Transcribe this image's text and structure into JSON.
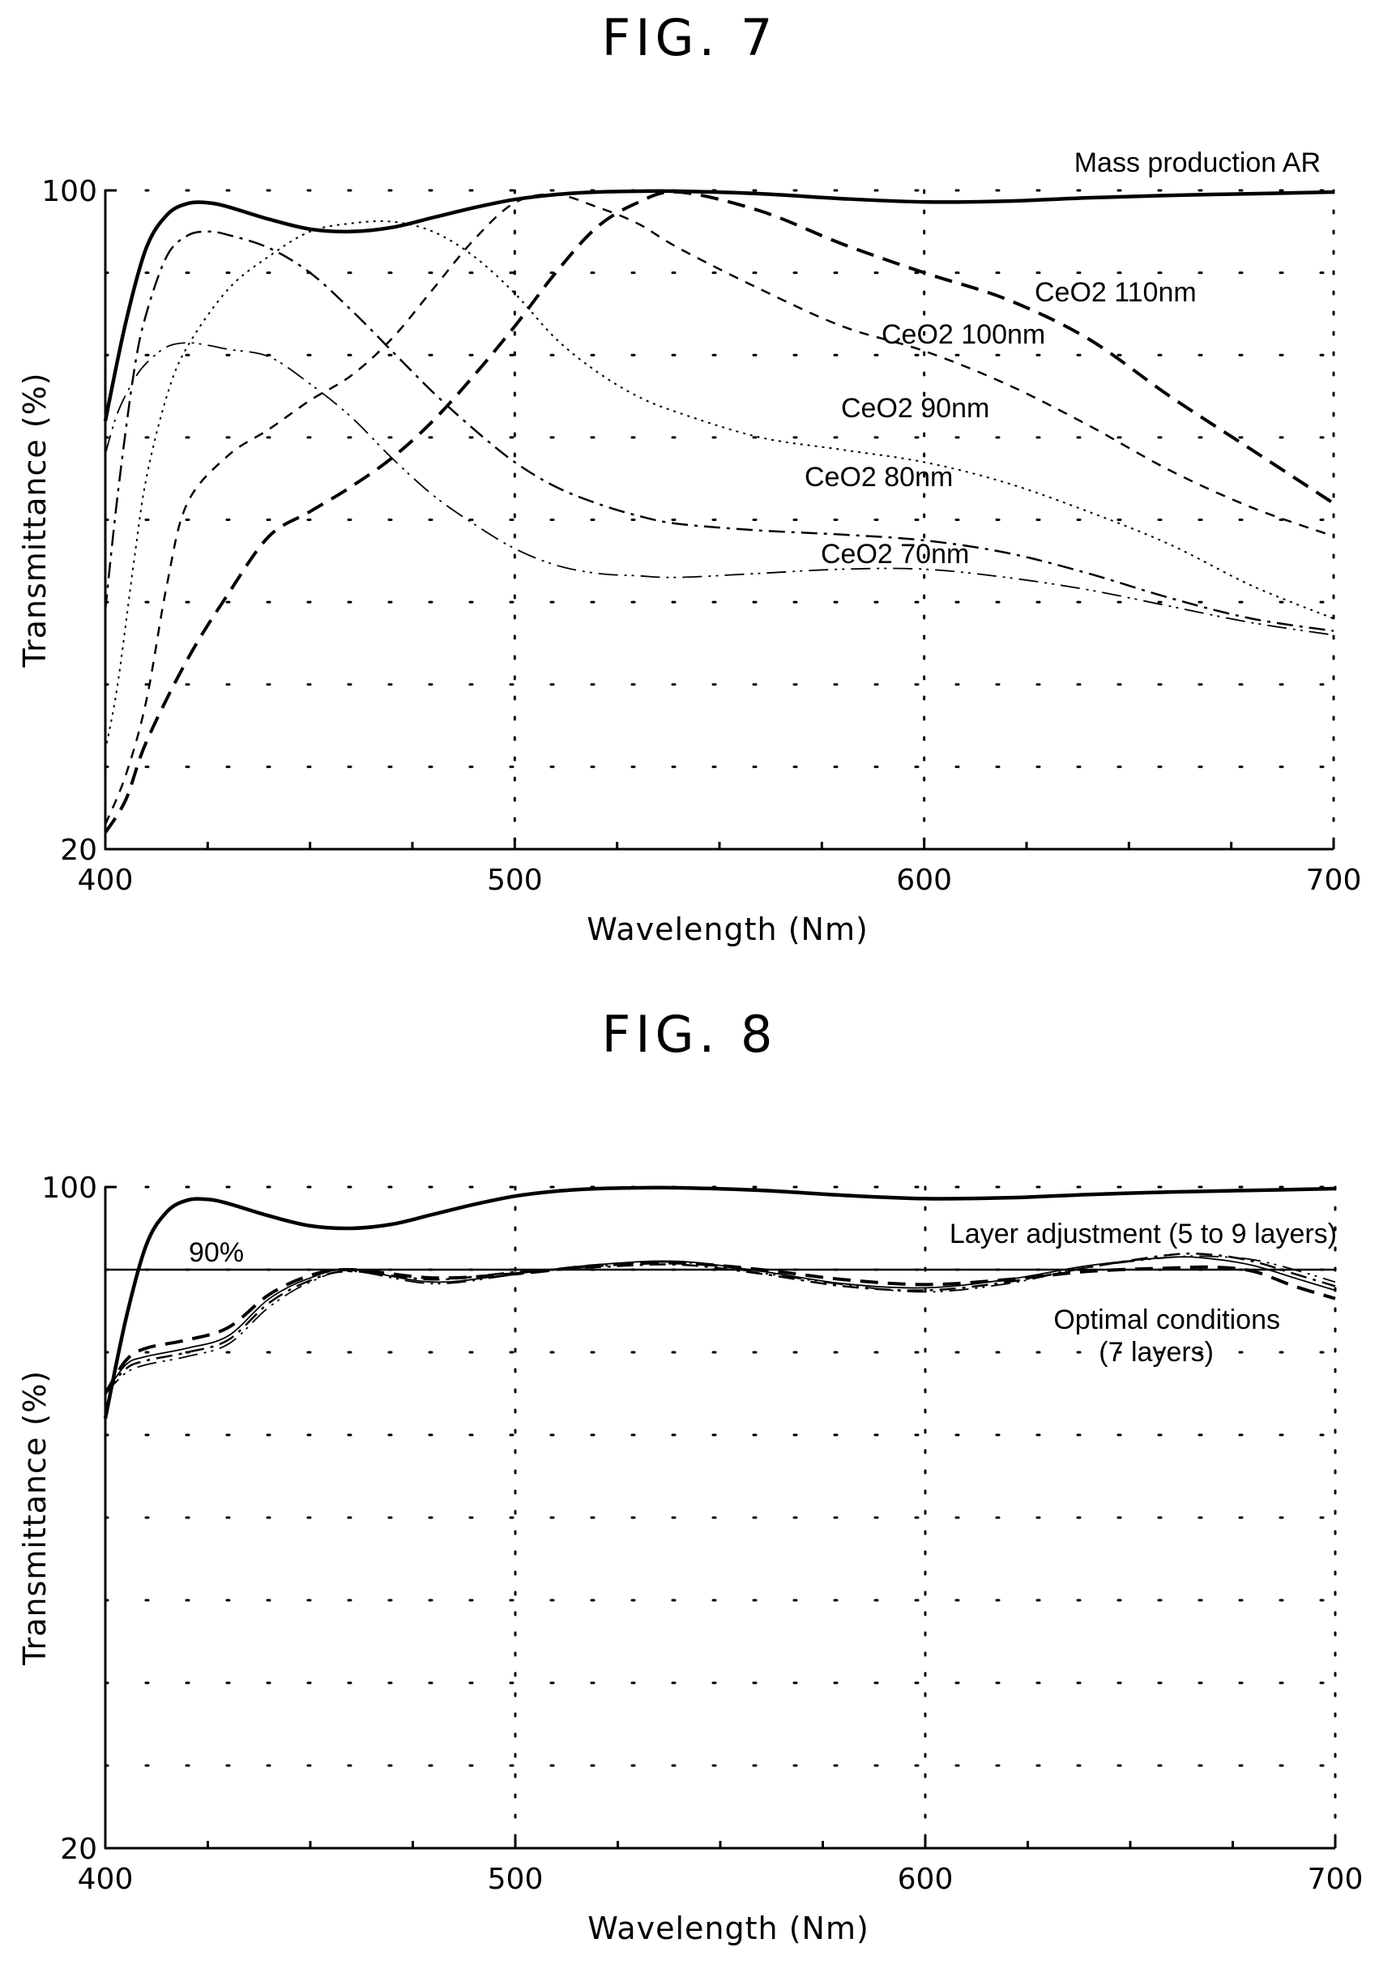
{
  "figures": [
    {
      "title": "FIG. 7"
    },
    {
      "title": "FIG. 8"
    }
  ],
  "chart_data": [
    {
      "type": "line",
      "title": "FIG. 7",
      "xlabel": "Wavelength (Nm)",
      "ylabel": "Transmittance (%)",
      "xlim": [
        400,
        700
      ],
      "ylim": [
        20,
        100
      ],
      "xticks": [
        400,
        500,
        600,
        700
      ],
      "yticks": [
        20,
        100
      ],
      "grid": true,
      "series": [
        {
          "name": "Mass production AR",
          "style": "solid-bold",
          "x": [
            400,
            405,
            410,
            415,
            420,
            425,
            430,
            440,
            450,
            460,
            470,
            480,
            490,
            500,
            510,
            520,
            530,
            540,
            560,
            580,
            600,
            620,
            640,
            660,
            680,
            700
          ],
          "y": [
            72,
            84,
            93,
            97,
            98.4,
            98.5,
            98,
            96.5,
            95.3,
            95,
            95.5,
            96.7,
            97.9,
            98.9,
            99.5,
            99.8,
            99.9,
            99.9,
            99.6,
            99,
            98.6,
            98.7,
            99.1,
            99.4,
            99.6,
            99.8
          ]
        },
        {
          "name": "CeO2 110nm",
          "style": "dash-long-bold",
          "x": [
            400,
            405,
            410,
            420,
            430,
            440,
            450,
            460,
            470,
            480,
            490,
            500,
            510,
            520,
            530,
            540,
            560,
            580,
            600,
            620,
            640,
            660,
            680,
            700
          ],
          "y": [
            22,
            26,
            33,
            43,
            51,
            58,
            61,
            64,
            67.5,
            72,
            77.5,
            83.5,
            90,
            95.5,
            98.5,
            99.8,
            97.5,
            93.5,
            90,
            86.8,
            82,
            75,
            68.5,
            62
          ]
        },
        {
          "name": "CeO2 100nm",
          "style": "dash-medium",
          "x": [
            400,
            405,
            410,
            415,
            420,
            430,
            440,
            450,
            460,
            470,
            480,
            490,
            500,
            510,
            520,
            530,
            540,
            560,
            580,
            600,
            620,
            640,
            660,
            680,
            700
          ],
          "y": [
            23,
            29,
            38,
            52,
            62,
            67.8,
            71,
            74.5,
            77.5,
            82,
            88,
            94,
            98.5,
            99.5,
            98,
            96,
            93,
            88,
            83.5,
            80.5,
            76.5,
            71.5,
            66,
            61.5,
            58
          ]
        },
        {
          "name": "CeO2 90nm",
          "style": "dotted",
          "x": [
            400,
            403,
            407,
            410,
            415,
            420,
            430,
            440,
            450,
            460,
            470,
            480,
            490,
            500,
            510,
            520,
            530,
            540,
            560,
            580,
            600,
            620,
            640,
            660,
            680,
            700
          ],
          "y": [
            32,
            40,
            55,
            65,
            75,
            81,
            88,
            92,
            95,
            96,
            96.2,
            95,
            92,
            87.5,
            82,
            78,
            75,
            73,
            70,
            68.5,
            67,
            64.5,
            61,
            57,
            52,
            48
          ]
        },
        {
          "name": "CeO2 80nm",
          "style": "dash-dot",
          "x": [
            400,
            403,
            407,
            410,
            415,
            420,
            425,
            430,
            440,
            450,
            460,
            470,
            480,
            490,
            500,
            510,
            520,
            530,
            540,
            560,
            580,
            600,
            620,
            640,
            660,
            680,
            700
          ],
          "y": [
            49,
            63,
            78,
            85,
            92,
            94.5,
            95,
            94.6,
            93,
            90,
            85.5,
            80.5,
            75.5,
            71,
            67,
            64,
            62,
            60.5,
            59.5,
            58.7,
            58.2,
            57.5,
            56,
            53.5,
            50.5,
            48,
            46.5
          ]
        },
        {
          "name": "CeO2 70nm",
          "style": "dash-dot-dot",
          "x": [
            400,
            403,
            407,
            410,
            415,
            420,
            425,
            430,
            440,
            450,
            460,
            470,
            480,
            490,
            500,
            510,
            520,
            530,
            540,
            560,
            580,
            600,
            620,
            640,
            660,
            680,
            700
          ],
          "y": [
            68,
            73,
            77,
            79,
            81,
            81.5,
            81.2,
            80.7,
            79.8,
            76.5,
            72.5,
            67.5,
            63,
            59.5,
            56.5,
            54.5,
            53.5,
            53.2,
            53,
            53.5,
            54,
            54,
            53,
            51.5,
            49.5,
            47.5,
            46
          ]
        }
      ],
      "annotations": [
        "Mass production AR",
        "CeO2 110nm",
        "CeO2 100nm",
        "CeO2 90nm",
        "CeO2 80nm",
        "CeO2 70nm"
      ]
    },
    {
      "type": "line",
      "title": "FIG. 8",
      "xlabel": "Wavelength (Nm)",
      "ylabel": "Transmittance (%)",
      "xlim": [
        400,
        700
      ],
      "ylim": [
        20,
        100
      ],
      "xticks": [
        400,
        500,
        600,
        700
      ],
      "yticks": [
        20,
        100
      ],
      "grid": true,
      "reference_line": {
        "label": "90%",
        "y": 90
      },
      "series": [
        {
          "name": "Mass production AR",
          "style": "solid-bold",
          "x": [
            400,
            405,
            410,
            415,
            420,
            425,
            430,
            440,
            450,
            460,
            470,
            480,
            490,
            500,
            510,
            520,
            530,
            540,
            560,
            580,
            600,
            620,
            640,
            660,
            680,
            700
          ],
          "y": [
            72,
            84,
            93,
            97,
            98.4,
            98.5,
            98,
            96.5,
            95.3,
            95,
            95.5,
            96.7,
            97.9,
            98.9,
            99.5,
            99.8,
            99.9,
            99.9,
            99.6,
            99,
            98.6,
            98.7,
            99.1,
            99.4,
            99.6,
            99.8
          ]
        },
        {
          "name": "Optimal conditions (7 layers)",
          "style": "dash-long-bold",
          "x": [
            400,
            405,
            410,
            420,
            430,
            440,
            450,
            460,
            480,
            500,
            520,
            540,
            560,
            580,
            600,
            620,
            640,
            660,
            670,
            680,
            690,
            700
          ],
          "y": [
            75,
            79,
            80.5,
            81.5,
            83,
            87,
            89.3,
            90,
            89,
            89.5,
            90.5,
            90.8,
            90,
            88.8,
            88.2,
            88.8,
            89.8,
            90.2,
            90.3,
            89.8,
            88,
            86.5
          ]
        },
        {
          "name": "",
          "style": "thin-solid",
          "x": [
            400,
            405,
            410,
            420,
            430,
            440,
            450,
            460,
            480,
            500,
            520,
            540,
            560,
            580,
            600,
            620,
            640,
            660,
            670,
            680,
            690,
            700
          ],
          "y": [
            75,
            78.5,
            79.5,
            80.5,
            82,
            86.5,
            89,
            90,
            88.5,
            89.5,
            90.6,
            91,
            89.8,
            88.3,
            87.8,
            88.8,
            90.5,
            91.5,
            91.3,
            90.5,
            89,
            87.5
          ]
        },
        {
          "name": "",
          "style": "dash-dot",
          "x": [
            400,
            405,
            410,
            420,
            430,
            440,
            450,
            460,
            480,
            500,
            520,
            540,
            560,
            580,
            600,
            620,
            640,
            660,
            670,
            680,
            690,
            700
          ],
          "y": [
            75,
            78,
            79,
            80,
            81.5,
            86,
            88.7,
            89.8,
            88.8,
            89.7,
            90.3,
            90.6,
            89.5,
            88,
            87.5,
            88.5,
            90.3,
            91.8,
            91.8,
            91,
            89.5,
            88
          ]
        },
        {
          "name": "",
          "style": "dash-dot-dot",
          "x": [
            400,
            405,
            410,
            420,
            430,
            440,
            450,
            460,
            480,
            500,
            520,
            540,
            560,
            580,
            600,
            620,
            640,
            660,
            670,
            680,
            690,
            700
          ],
          "y": [
            75,
            77.5,
            78.5,
            79.5,
            81,
            85.5,
            88.5,
            89.8,
            88.3,
            89.4,
            90.4,
            90.9,
            89.6,
            88.2,
            87.3,
            88.3,
            90.3,
            91.5,
            91.6,
            91.2,
            90,
            88.5
          ]
        }
      ],
      "annotations": [
        "Layer adjustment (5 to 9 layers)",
        "Optimal conditions",
        "(7 layers)"
      ]
    }
  ]
}
